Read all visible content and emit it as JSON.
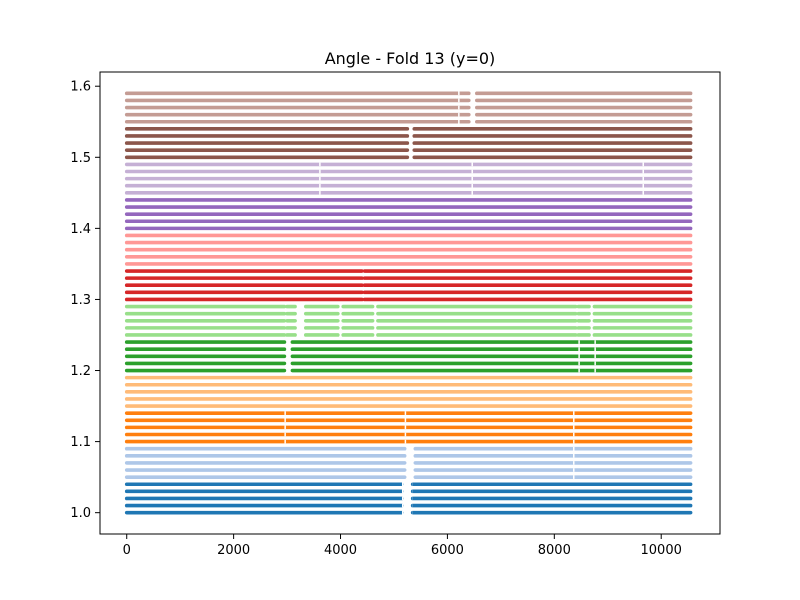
{
  "chart_data": {
    "type": "scatter",
    "title": "Angle - Fold 13 (y=0)",
    "xlabel": "",
    "ylabel": "",
    "xlim": [
      -500,
      11100
    ],
    "ylim": [
      0.97,
      1.62
    ],
    "xticks": [
      0,
      2000,
      4000,
      6000,
      8000,
      10000
    ],
    "xtick_labels": [
      "0",
      "2000",
      "4000",
      "6000",
      "8000",
      "10000"
    ],
    "yticks": [
      1.0,
      1.1,
      1.2,
      1.3,
      1.4,
      1.5,
      1.6
    ],
    "ytick_labels": [
      "1.0",
      "1.1",
      "1.2",
      "1.3",
      "1.4",
      "1.5",
      "1.6"
    ],
    "grid": false,
    "x_range": [
      0,
      10550
    ],
    "series": [
      {
        "y": [
          1.0,
          1.01,
          1.02,
          1.03,
          1.04
        ],
        "color": "#1f77b4",
        "gaps": [
          [
            5150,
            5350
          ]
        ],
        "sparse": [
          [
            5150,
            5350
          ]
        ]
      },
      {
        "y": [
          1.05,
          1.06,
          1.07,
          1.08,
          1.09
        ],
        "color": "#aec7e8",
        "gaps": [
          [
            5200,
            5400
          ]
        ],
        "sparse": [
          [
            8350,
            8400
          ]
        ]
      },
      {
        "y": [
          1.1,
          1.11,
          1.12,
          1.13,
          1.14
        ],
        "color": "#ff7f0e",
        "gaps": [],
        "sparse": [
          [
            2950,
            3000
          ],
          [
            5200,
            5250
          ],
          [
            8350,
            8400
          ]
        ]
      },
      {
        "y": [
          1.15,
          1.16,
          1.17,
          1.18,
          1.19
        ],
        "color": "#ffbb78",
        "gaps": [],
        "sparse": []
      },
      {
        "y": [
          1.2,
          1.21,
          1.22,
          1.23,
          1.24
        ],
        "color": "#2ca02c",
        "gaps": [
          [
            2950,
            3100
          ]
        ],
        "sparse": [
          [
            8450,
            8500
          ],
          [
            8750,
            8800
          ]
        ]
      },
      {
        "y": [
          1.25,
          1.26,
          1.27,
          1.28,
          1.29
        ],
        "color": "#98df8a",
        "gaps": [
          [
            2950,
            3000
          ],
          [
            3150,
            3350
          ],
          [
            3950,
            4050
          ],
          [
            4600,
            4700
          ],
          [
            8400,
            8450
          ],
          [
            8650,
            8750
          ]
        ],
        "sparse": []
      },
      {
        "y": [
          1.3,
          1.31,
          1.32,
          1.33,
          1.34
        ],
        "color": "#d62728",
        "gaps": [
          [
            4400,
            4450
          ]
        ],
        "sparse": []
      },
      {
        "y": [
          1.35,
          1.36,
          1.37,
          1.38,
          1.39
        ],
        "color": "#ff9896",
        "gaps": [],
        "sparse": []
      },
      {
        "y": [
          1.4,
          1.41,
          1.42,
          1.43,
          1.44
        ],
        "color": "#9467bd",
        "gaps": [],
        "sparse": []
      },
      {
        "y": [
          1.45,
          1.46,
          1.47,
          1.48,
          1.49
        ],
        "color": "#c5b0d5",
        "gaps": [],
        "sparse": [
          [
            3600,
            3650
          ],
          [
            6450,
            6500
          ],
          [
            9650,
            9700
          ]
        ]
      },
      {
        "y": [
          1.5,
          1.51,
          1.52,
          1.53,
          1.54
        ],
        "color": "#8c564b",
        "gaps": [
          [
            5250,
            5380
          ]
        ],
        "sparse": []
      },
      {
        "y": [
          1.55,
          1.56,
          1.57,
          1.58,
          1.59
        ],
        "color": "#c49c94",
        "gaps": [
          [
            6400,
            6550
          ]
        ],
        "sparse": [
          [
            6200,
            6250
          ]
        ]
      }
    ]
  }
}
